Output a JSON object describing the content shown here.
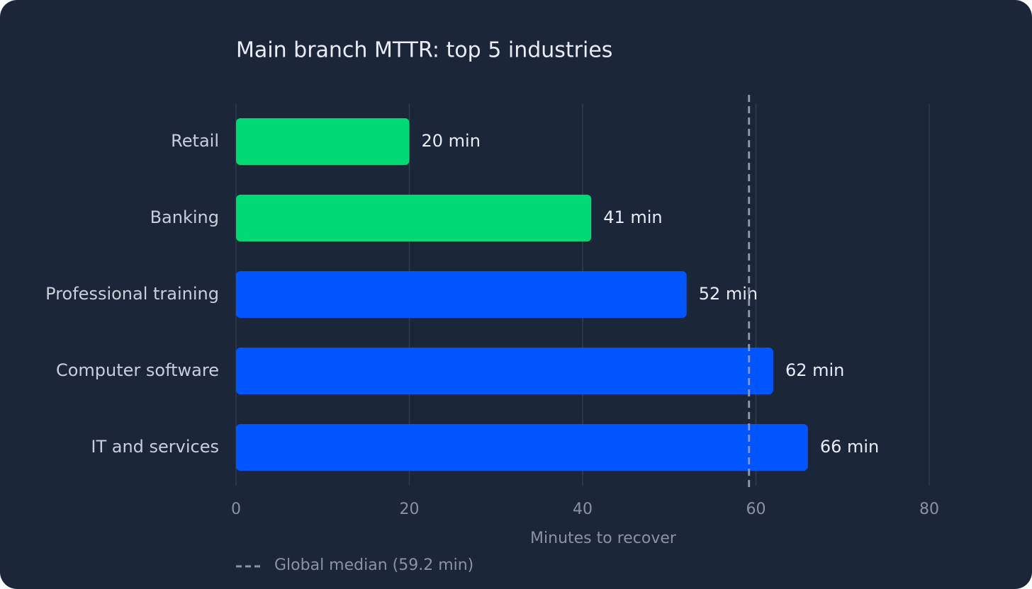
{
  "chart_data": {
    "type": "bar",
    "orientation": "horizontal",
    "title": "Main branch MTTR: top 5 industries",
    "categories": [
      "Retail",
      "Banking",
      "Professional training",
      "Computer software",
      "IT and services"
    ],
    "values": [
      20,
      41,
      52,
      62,
      66
    ],
    "value_labels": [
      "20 min",
      "41 min",
      "52 min",
      "62 min",
      "66 min"
    ],
    "colors": [
      "#00d974",
      "#00d974",
      "#0055ff",
      "#0055ff",
      "#0055ff"
    ],
    "xlim": [
      0,
      80
    ],
    "xticks": [
      0,
      20,
      40,
      60,
      80
    ],
    "xlabel": "Minutes to recover",
    "grid": true,
    "reference_line": {
      "value": 59.2,
      "label": "Global median (59.2 min)",
      "color": "#8a95a8"
    }
  }
}
